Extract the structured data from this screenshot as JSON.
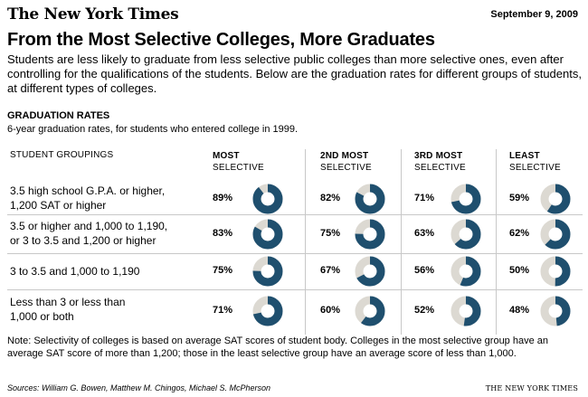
{
  "header": {
    "masthead": "The New York Times",
    "date": "September 9, 2009"
  },
  "title": "From the Most Selective Colleges, More Graduates",
  "intro": "Students are less likely to graduate from less selective public colleges than more selective ones, even after controlling for the qualifications of the students. Below are the graduation rates for different groups of students, at different types of colleges.",
  "section": {
    "title": "GRADUATION RATES",
    "subtitle": "6-year graduation rates, for students who entered college in 1999."
  },
  "chart_data": {
    "type": "table",
    "title": "GRADUATION RATES",
    "subtitle": "6-year graduation rates, for students who entered college in 1999.",
    "row_header": "STUDENT GROUPINGS",
    "columns": [
      {
        "line1": "MOST",
        "line2": "SELECTIVE"
      },
      {
        "line1": "2ND MOST",
        "line2": "SELECTIVE"
      },
      {
        "line1": "3RD MOST",
        "line2": "SELECTIVE"
      },
      {
        "line1": "LEAST",
        "line2": "SELECTIVE"
      }
    ],
    "rows": [
      {
        "label": [
          "3.5 high school G.P.A. or higher,",
          "1,200 SAT or higher"
        ],
        "values": [
          89,
          82,
          71,
          59
        ]
      },
      {
        "label": [
          "3.5 or higher and 1,000 to 1,190,",
          "or 3 to 3.5 and 1,200 or higher"
        ],
        "values": [
          83,
          75,
          63,
          62
        ]
      },
      {
        "label": [
          "3 to 3.5 and 1,000 to 1,190"
        ],
        "values": [
          75,
          67,
          56,
          50
        ]
      },
      {
        "label": [
          "Less than 3 or less than",
          "1,000 or both"
        ],
        "values": [
          71,
          60,
          52,
          48
        ]
      }
    ],
    "value_suffix": "%",
    "colors": {
      "fill": "#1f4f6e",
      "remainder": "#dcd9d2"
    }
  },
  "note": "Note: Selectivity of colleges is based on average SAT scores of student body. Colleges in the most selective group have an average SAT score of more than 1,200; those in the least selective group have an average score of less than 1,000.",
  "sources": "Sources: William G. Bowen, Matthew M. Chingos, Michael S. McPherson",
  "credit": "THE NEW YORK TIMES"
}
